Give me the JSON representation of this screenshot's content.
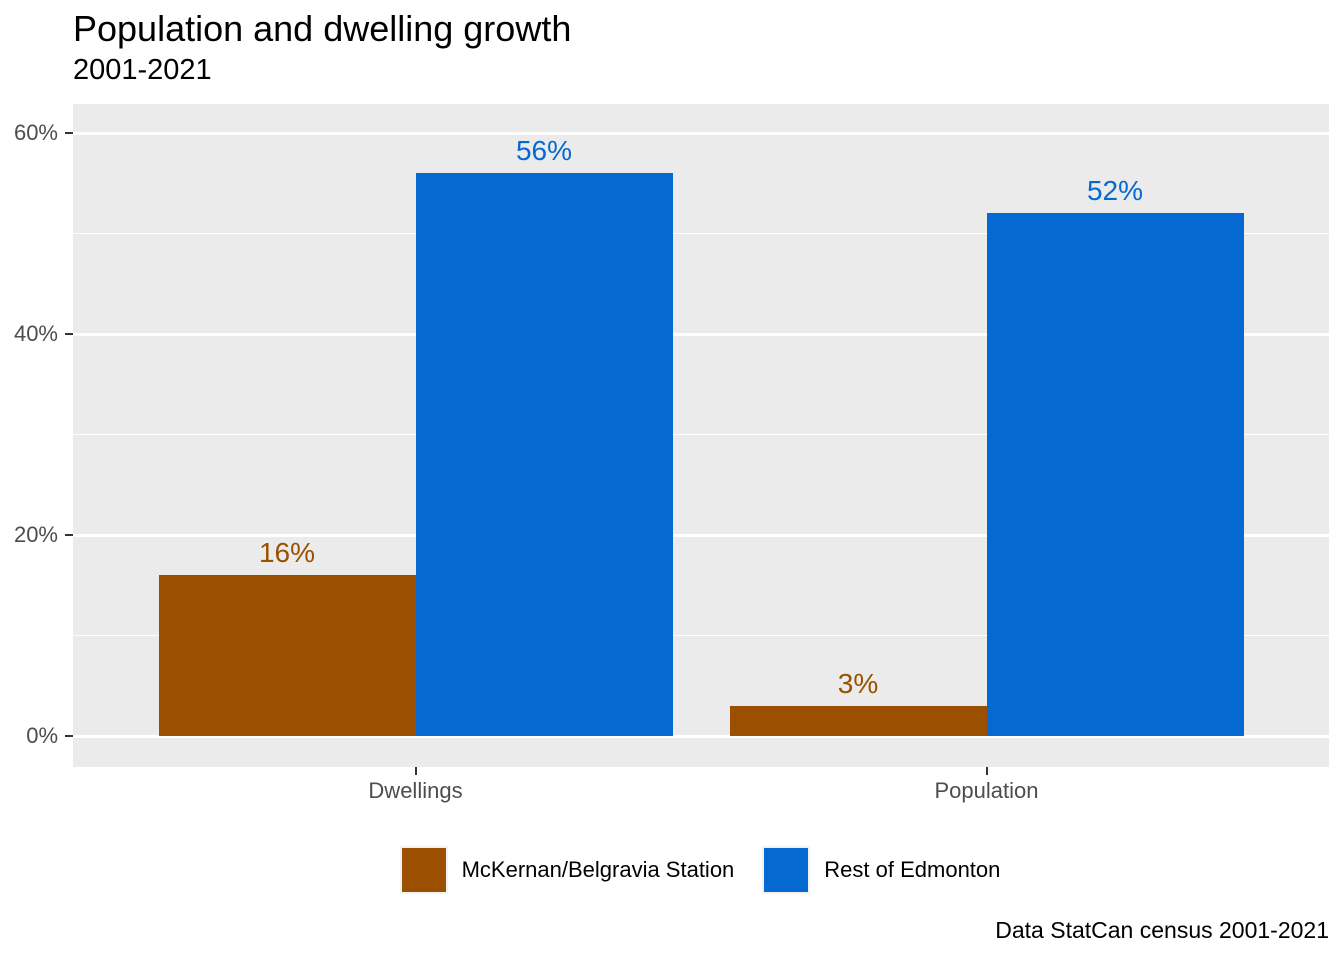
{
  "chart": {
    "title": "Population and dwelling growth",
    "subtitle": "2001-2021",
    "caption": "Data StatCan census 2001-2021"
  },
  "chart_data": {
    "type": "bar",
    "categories": [
      "Dwellings",
      "Population"
    ],
    "series": [
      {
        "name": "McKernan/Belgravia Station",
        "color": "#9A5000",
        "values": [
          16,
          3
        ],
        "value_labels": [
          "16%",
          "3%"
        ]
      },
      {
        "name": "Rest of Edmonton",
        "color": "#0569D2",
        "values": [
          56,
          52
        ],
        "value_labels": [
          "56%",
          "52%"
        ]
      }
    ],
    "title": "Population and dwelling growth",
    "subtitle": "2001-2021",
    "caption": "Data StatCan census 2001-2021",
    "xlabel": "",
    "ylabel": "",
    "ylim": [
      -3.1,
      62.9
    ],
    "yticks": [
      0,
      20,
      40,
      60
    ],
    "ytick_labels": [
      "0%",
      "20%",
      "40%",
      "60%"
    ],
    "minor_ticks": [
      10,
      30,
      50
    ],
    "grid": true,
    "legend_position": "bottom",
    "colors": {
      "panel_background": "#EBEBEB",
      "gridline": "#FFFFFF",
      "axis_text": "#4D4D4D",
      "tick_mark": "#333333",
      "title_text": "#000000"
    }
  }
}
